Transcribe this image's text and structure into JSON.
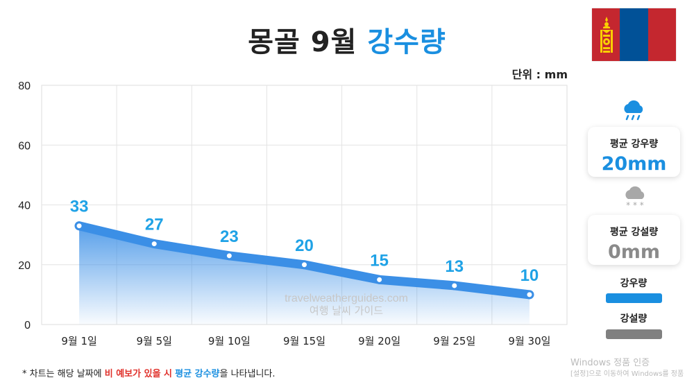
{
  "title": {
    "main": "몽골 9월 ",
    "highlight": "강수량"
  },
  "unit": "단위 : mm",
  "watermark": {
    "line1": "travelweatherguides.com",
    "line2": "여행 날씨 가이드"
  },
  "cards": {
    "rain": {
      "label": "평균 강우량",
      "value": "20mm",
      "icon": "rain-cloud-icon",
      "color": "#1a8fe0"
    },
    "snow": {
      "label": "평균 강설량",
      "value": "0mm",
      "icon": "snow-cloud-icon",
      "color": "#888888"
    }
  },
  "legend": [
    {
      "label": "강우량",
      "color": "#1a8fe0"
    },
    {
      "label": "강설량",
      "color": "#808080"
    }
  ],
  "footnote": {
    "p1": "* 차트는 해당 날짜에 ",
    "p2": "비 예보가 있을 시",
    "p3": " ",
    "p4": "평균 강수량",
    "p5": "을 나타냅니다."
  },
  "windows_notice": {
    "line1": "Windows 정품 인증",
    "line2": "[설정]으로 이동하여 Windows를 정품"
  },
  "flag_colors": [
    "#c4272f",
    "#015197",
    "#c4272f"
  ],
  "chart_data": {
    "type": "line",
    "categories": [
      "9월 1일",
      "9월 5일",
      "9월 10일",
      "9월 15일",
      "9월 20일",
      "9월 25일",
      "9월 30일"
    ],
    "series": [
      {
        "values": [
          33,
          27,
          23,
          20,
          15,
          13,
          10
        ],
        "color": "#3b8fe6"
      }
    ],
    "data_labels": [
      "33",
      "27",
      "23",
      "20",
      "15",
      "13",
      "10"
    ],
    "yticks": [
      0,
      20,
      40,
      60,
      80
    ],
    "ylim": [
      0,
      80
    ],
    "grid": true,
    "area_fill": true
  }
}
